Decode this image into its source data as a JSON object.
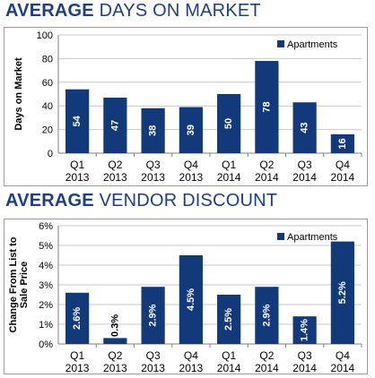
{
  "colors": {
    "bar": "#123a7a",
    "title": "#1f3f7f",
    "grid": "#c8c8c8",
    "axis": "#7f7f7f"
  },
  "charts": [
    {
      "title_bold": "AVERAGE",
      "title_rest": " DAYS ON MARKET",
      "chart_data": {
        "type": "bar",
        "categories": [
          "Q1 2013",
          "Q2 2013",
          "Q3 2013",
          "Q4 2013",
          "Q1 2014",
          "Q2 2014",
          "Q3 2014",
          "Q4 2014"
        ],
        "category_lines": [
          [
            "Q1",
            "2013"
          ],
          [
            "Q2",
            "2013"
          ],
          [
            "Q3",
            "2013"
          ],
          [
            "Q4",
            "2013"
          ],
          [
            "Q1",
            "2014"
          ],
          [
            "Q2",
            "2014"
          ],
          [
            "Q3",
            "2014"
          ],
          [
            "Q4",
            "2014"
          ]
        ],
        "series": [
          {
            "name": "Apartments",
            "values": [
              54,
              47,
              38,
              39,
              50,
              78,
              43,
              16
            ],
            "labels": [
              "54",
              "47",
              "38",
              "39",
              "50",
              "78",
              "43",
              "16"
            ]
          }
        ],
        "ylabel": "Days on Market",
        "ylim": [
          0,
          100
        ],
        "yticks": [
          0,
          20,
          40,
          60,
          80,
          100
        ],
        "ytick_labels": [
          "0",
          "20",
          "40",
          "60",
          "80",
          "100"
        ],
        "grid": true,
        "legend": "top-right"
      }
    },
    {
      "title_bold": "AVERAGE",
      "title_rest": " VENDOR DISCOUNT",
      "chart_data": {
        "type": "bar",
        "categories": [
          "Q1 2013",
          "Q2 2013",
          "Q3 2013",
          "Q4 2013",
          "Q1 2014",
          "Q2 2014",
          "Q3 2014",
          "Q4 2014"
        ],
        "category_lines": [
          [
            "Q1",
            "2013"
          ],
          [
            "Q2",
            "2013"
          ],
          [
            "Q3",
            "2013"
          ],
          [
            "Q4",
            "2013"
          ],
          [
            "Q1",
            "2014"
          ],
          [
            "Q2",
            "2014"
          ],
          [
            "Q3",
            "2014"
          ],
          [
            "Q4",
            "2014"
          ]
        ],
        "series": [
          {
            "name": "Apartments",
            "values": [
              2.6,
              0.3,
              2.9,
              4.5,
              2.5,
              2.9,
              1.4,
              5.2
            ],
            "labels": [
              "2.6%",
              "0.3%",
              "2.9%",
              "4.5%",
              "2.5%",
              "2.9%",
              "1.4%",
              "5.2%"
            ]
          }
        ],
        "ylabel_lines": [
          "Change From List to",
          "Sale Price"
        ],
        "ylim": [
          0,
          6
        ],
        "yticks": [
          0,
          1,
          2,
          3,
          4,
          5,
          6
        ],
        "ytick_labels": [
          "0%",
          "1%",
          "2%",
          "3%",
          "4%",
          "5%",
          "6%"
        ],
        "grid": true,
        "legend": "top-right"
      }
    }
  ]
}
